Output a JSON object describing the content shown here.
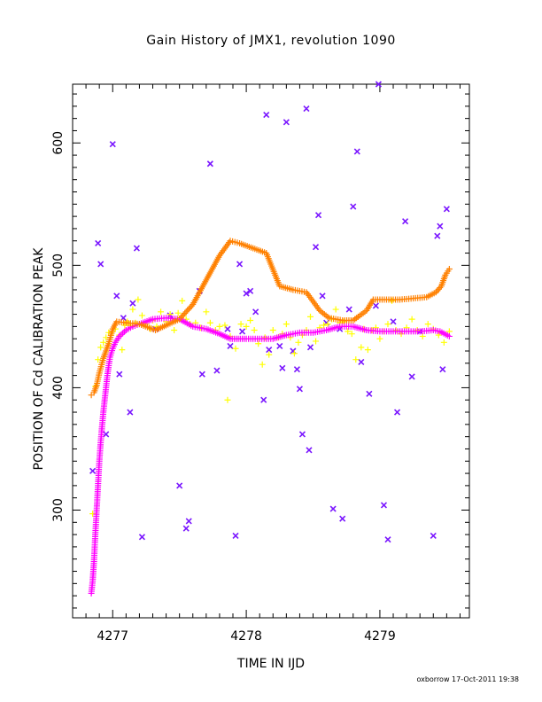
{
  "chart_data": {
    "type": "scatter",
    "title": "Gain History of JMX1, revolution 1090",
    "xlabel": "TIME IN IJD",
    "ylabel": "POSITION OF Cd CALIBRATION PEAK",
    "xlim": [
      4276.7,
      4279.67
    ],
    "ylim": [
      212,
      648
    ],
    "xticks": [
      4277,
      4278,
      4279
    ],
    "yticks": [
      300,
      400,
      500,
      600
    ],
    "grid": false,
    "footer": "oxborrow 17-Oct-2011 19:38",
    "series": [
      {
        "marker": "x",
        "color": "#7a16ff",
        "points": [
          [
            4276.85,
            332
          ],
          [
            4276.89,
            518
          ],
          [
            4276.91,
            501
          ],
          [
            4276.95,
            362
          ],
          [
            4277.0,
            599
          ],
          [
            4277.03,
            475
          ],
          [
            4277.05,
            411
          ],
          [
            4277.08,
            457
          ],
          [
            4277.13,
            380
          ],
          [
            4277.15,
            469
          ],
          [
            4277.18,
            514
          ],
          [
            4277.22,
            278
          ],
          [
            4277.43,
            459
          ],
          [
            4277.5,
            320
          ],
          [
            4277.55,
            285
          ],
          [
            4277.57,
            291
          ],
          [
            4277.65,
            479
          ],
          [
            4277.67,
            411
          ],
          [
            4277.73,
            583
          ],
          [
            4277.78,
            414
          ],
          [
            4277.86,
            448
          ],
          [
            4277.88,
            434
          ],
          [
            4277.92,
            279
          ],
          [
            4277.95,
            501
          ],
          [
            4277.97,
            446
          ],
          [
            4278.0,
            477
          ],
          [
            4278.03,
            479
          ],
          [
            4278.07,
            462
          ],
          [
            4278.13,
            390
          ],
          [
            4278.15,
            623
          ],
          [
            4278.17,
            431
          ],
          [
            4278.25,
            434
          ],
          [
            4278.27,
            416
          ],
          [
            4278.3,
            617
          ],
          [
            4278.35,
            430
          ],
          [
            4278.38,
            415
          ],
          [
            4278.4,
            399
          ],
          [
            4278.42,
            362
          ],
          [
            4278.45,
            628
          ],
          [
            4278.47,
            349
          ],
          [
            4278.48,
            433
          ],
          [
            4278.52,
            515
          ],
          [
            4278.54,
            541
          ],
          [
            4278.57,
            475
          ],
          [
            4278.6,
            453
          ],
          [
            4278.65,
            301
          ],
          [
            4278.72,
            293
          ],
          [
            4278.77,
            464
          ],
          [
            4278.8,
            548
          ],
          [
            4278.83,
            593
          ],
          [
            4278.86,
            421
          ],
          [
            4278.92,
            395
          ],
          [
            4278.97,
            467
          ],
          [
            4278.99,
            648
          ],
          [
            4279.03,
            304
          ],
          [
            4279.06,
            276
          ],
          [
            4279.1,
            454
          ],
          [
            4279.13,
            380
          ],
          [
            4279.19,
            536
          ],
          [
            4279.24,
            409
          ],
          [
            4279.4,
            279
          ],
          [
            4279.43,
            524
          ],
          [
            4279.45,
            532
          ],
          [
            4279.47,
            415
          ],
          [
            4279.5,
            546
          ],
          [
            4277.32,
            448
          ],
          [
            4278.7,
            448
          ],
          [
            4279.3,
            446
          ]
        ]
      },
      {
        "marker": "+",
        "color": "#ffff00",
        "points": [
          [
            4276.85,
            297
          ],
          [
            4276.87,
            401
          ],
          [
            4276.89,
            423
          ],
          [
            4276.91,
            433
          ],
          [
            4276.93,
            437
          ],
          [
            4276.95,
            441
          ],
          [
            4276.97,
            445
          ],
          [
            4277.0,
            446
          ],
          [
            4277.02,
            448
          ],
          [
            4277.05,
            443
          ],
          [
            4277.07,
            431
          ],
          [
            4277.09,
            451
          ],
          [
            4277.11,
            454
          ],
          [
            4277.13,
            451
          ],
          [
            4277.15,
            464
          ],
          [
            4277.17,
            453
          ],
          [
            4277.19,
            472
          ],
          [
            4277.22,
            459
          ],
          [
            4277.25,
            452
          ],
          [
            4277.28,
            448
          ],
          [
            4277.3,
            455
          ],
          [
            4277.33,
            450
          ],
          [
            4277.36,
            462
          ],
          [
            4277.4,
            454
          ],
          [
            4277.43,
            460
          ],
          [
            4277.46,
            447
          ],
          [
            4277.49,
            461
          ],
          [
            4277.52,
            471
          ],
          [
            4277.55,
            456
          ],
          [
            4277.58,
            452
          ],
          [
            4277.62,
            453
          ],
          [
            4277.66,
            449
          ],
          [
            4277.7,
            462
          ],
          [
            4277.73,
            453
          ],
          [
            4277.77,
            447
          ],
          [
            4277.8,
            450
          ],
          [
            4277.84,
            451
          ],
          [
            4277.86,
            390
          ],
          [
            4277.88,
            442
          ],
          [
            4277.92,
            432
          ],
          [
            4277.96,
            452
          ],
          [
            4278.0,
            450
          ],
          [
            4278.03,
            455
          ],
          [
            4278.06,
            447
          ],
          [
            4278.09,
            436
          ],
          [
            4278.12,
            419
          ],
          [
            4278.14,
            441
          ],
          [
            4278.17,
            427
          ],
          [
            4278.2,
            447
          ],
          [
            4278.24,
            441
          ],
          [
            4278.27,
            444
          ],
          [
            4278.3,
            452
          ],
          [
            4278.33,
            441
          ],
          [
            4278.36,
            428
          ],
          [
            4278.39,
            437
          ],
          [
            4278.42,
            443
          ],
          [
            4278.45,
            447
          ],
          [
            4278.48,
            458
          ],
          [
            4278.52,
            438
          ],
          [
            4278.55,
            449
          ],
          [
            4278.58,
            451
          ],
          [
            4278.61,
            452
          ],
          [
            4278.64,
            456
          ],
          [
            4278.67,
            464
          ],
          [
            4278.7,
            453
          ],
          [
            4278.73,
            454
          ],
          [
            4278.76,
            446
          ],
          [
            4278.79,
            444
          ],
          [
            4278.82,
            423
          ],
          [
            4278.86,
            433
          ],
          [
            4278.88,
            448
          ],
          [
            4278.91,
            431
          ],
          [
            4278.94,
            447
          ],
          [
            4278.97,
            449
          ],
          [
            4279.0,
            440
          ],
          [
            4279.03,
            446
          ],
          [
            4279.06,
            452
          ],
          [
            4279.09,
            471
          ],
          [
            4279.12,
            447
          ],
          [
            4279.16,
            444
          ],
          [
            4279.2,
            449
          ],
          [
            4279.24,
            456
          ],
          [
            4279.28,
            447
          ],
          [
            4279.32,
            442
          ],
          [
            4279.36,
            452
          ],
          [
            4279.4,
            448
          ],
          [
            4279.44,
            443
          ],
          [
            4279.48,
            437
          ],
          [
            4279.52,
            446
          ]
        ]
      },
      {
        "marker": "+",
        "color": "#ff00ff",
        "points": [
          [
            4276.84,
            232
          ],
          [
            4276.85,
            242
          ],
          [
            4276.86,
            258
          ],
          [
            4276.87,
            280
          ],
          [
            4276.88,
            300
          ],
          [
            4276.89,
            320
          ],
          [
            4276.9,
            340
          ],
          [
            4276.91,
            355
          ],
          [
            4276.92,
            368
          ],
          [
            4276.93,
            380
          ],
          [
            4276.94,
            390
          ],
          [
            4276.95,
            400
          ],
          [
            4276.96,
            410
          ],
          [
            4276.97,
            418
          ],
          [
            4276.98,
            425
          ],
          [
            4277.0,
            432
          ],
          [
            4277.02,
            437
          ],
          [
            4277.05,
            442
          ],
          [
            4277.1,
            447
          ],
          [
            4277.15,
            450
          ],
          [
            4277.2,
            452
          ],
          [
            4277.3,
            456
          ],
          [
            4277.4,
            457
          ],
          [
            4277.5,
            456
          ],
          [
            4277.6,
            450
          ],
          [
            4277.7,
            448
          ],
          [
            4277.8,
            444
          ],
          [
            4277.88,
            440
          ],
          [
            4278.0,
            440
          ],
          [
            4278.1,
            440
          ],
          [
            4278.2,
            440
          ],
          [
            4278.3,
            443
          ],
          [
            4278.4,
            445
          ],
          [
            4278.5,
            445
          ],
          [
            4278.6,
            447
          ],
          [
            4278.7,
            450
          ],
          [
            4278.8,
            450
          ],
          [
            4278.9,
            447
          ],
          [
            4279.0,
            446
          ],
          [
            4279.1,
            446
          ],
          [
            4279.2,
            446
          ],
          [
            4279.3,
            446
          ],
          [
            4279.4,
            447
          ],
          [
            4279.45,
            446
          ],
          [
            4279.52,
            442
          ]
        ]
      },
      {
        "marker": "+",
        "color": "#ff8000",
        "points": [
          [
            4276.84,
            394
          ],
          [
            4276.86,
            396
          ],
          [
            4276.88,
            402
          ],
          [
            4276.9,
            412
          ],
          [
            4276.93,
            424
          ],
          [
            4276.97,
            436
          ],
          [
            4277.0,
            448
          ],
          [
            4277.03,
            454
          ],
          [
            4277.1,
            453
          ],
          [
            4277.2,
            452
          ],
          [
            4277.32,
            447
          ],
          [
            4277.4,
            451
          ],
          [
            4277.5,
            456
          ],
          [
            4277.6,
            468
          ],
          [
            4277.7,
            488
          ],
          [
            4277.8,
            508
          ],
          [
            4277.88,
            520
          ],
          [
            4277.95,
            518
          ],
          [
            4278.05,
            514
          ],
          [
            4278.15,
            510
          ],
          [
            4278.25,
            483
          ],
          [
            4278.35,
            480
          ],
          [
            4278.45,
            478
          ],
          [
            4278.55,
            463
          ],
          [
            4278.62,
            457
          ],
          [
            4278.72,
            455
          ],
          [
            4278.8,
            455
          ],
          [
            4278.9,
            463
          ],
          [
            4278.95,
            472
          ],
          [
            4279.05,
            472
          ],
          [
            4279.15,
            472
          ],
          [
            4279.25,
            473
          ],
          [
            4279.35,
            474
          ],
          [
            4279.42,
            478
          ],
          [
            4279.46,
            483
          ],
          [
            4279.49,
            492
          ],
          [
            4279.52,
            497
          ]
        ]
      }
    ]
  }
}
